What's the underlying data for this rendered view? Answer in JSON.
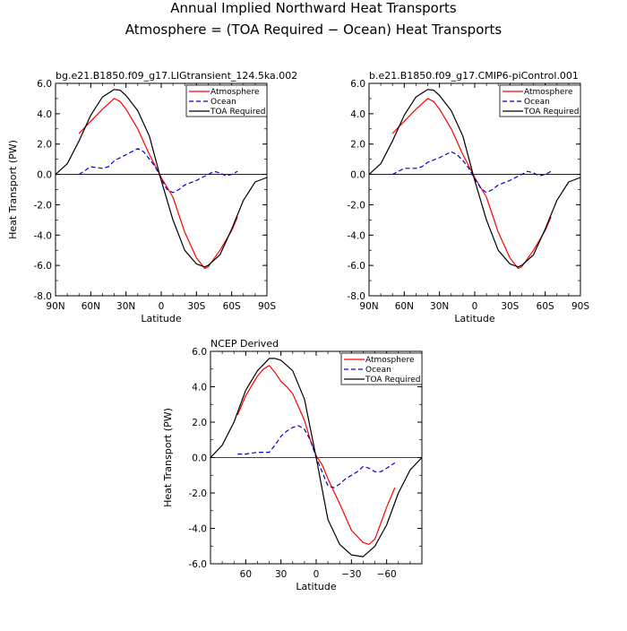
{
  "figure": {
    "title_line1": "Annual Implied Northward Heat Transports",
    "title_line2": "Atmosphere = (TOA Required − Ocean) Heat Transports"
  },
  "chart_data": [
    {
      "type": "line",
      "title": "bg.e21.B1850.f09_g17.LIGtransient_124.5ka.002",
      "xlabel": "Latitude",
      "ylabel": "Heat Transport (PW)",
      "xlim": [
        90,
        -90
      ],
      "ylim": [
        -8,
        6
      ],
      "xticks": [
        90,
        60,
        30,
        0,
        -30,
        -60,
        -90
      ],
      "xticklabels": [
        "90N",
        "60N",
        "30N",
        "0",
        "30S",
        "60S",
        "90S"
      ],
      "yticks": [
        -8,
        -6,
        -4,
        -2,
        0,
        2,
        4,
        6
      ],
      "yticklabels": [
        "-8.0",
        "-6.0",
        "-4.0",
        "-2.0",
        "0.0",
        "2.0",
        "4.0",
        "6.0"
      ],
      "series": [
        {
          "name": "Atmosphere",
          "color": "#ff0000",
          "dash": "solid",
          "x": [
            70,
            60,
            50,
            40,
            35,
            30,
            20,
            10,
            0,
            -10,
            -20,
            -30,
            -37,
            -40,
            -50,
            -60,
            -65
          ],
          "y": [
            2.7,
            3.5,
            4.3,
            5.0,
            4.8,
            4.3,
            3.0,
            1.3,
            -0.2,
            -1.5,
            -3.8,
            -5.5,
            -6.2,
            -6.1,
            -5.0,
            -3.7,
            -2.8
          ]
        },
        {
          "name": "Ocean",
          "color": "#0000cc",
          "dash": "dashed",
          "x": [
            70,
            60,
            50,
            45,
            40,
            30,
            25,
            20,
            15,
            10,
            5,
            0,
            -5,
            -10,
            -15,
            -20,
            -30,
            -40,
            -45,
            -50,
            -55,
            -60,
            -65
          ],
          "y": [
            0.0,
            0.5,
            0.4,
            0.5,
            0.9,
            1.3,
            1.5,
            1.7,
            1.5,
            1.0,
            0.5,
            -0.3,
            -1.0,
            -1.2,
            -1.0,
            -0.7,
            -0.4,
            0.0,
            0.2,
            0.1,
            -0.1,
            0.0,
            0.2
          ]
        },
        {
          "name": "TOA Required",
          "color": "#000000",
          "dash": "solid",
          "x": [
            90,
            80,
            70,
            60,
            50,
            40,
            35,
            30,
            20,
            10,
            0,
            -10,
            -20,
            -30,
            -37,
            -40,
            -50,
            -60,
            -70,
            -80,
            -90
          ],
          "y": [
            0.0,
            0.7,
            2.2,
            3.9,
            5.1,
            5.6,
            5.55,
            5.2,
            4.2,
            2.5,
            -0.4,
            -3.0,
            -5.0,
            -5.9,
            -6.1,
            -6.0,
            -5.3,
            -3.6,
            -1.7,
            -0.5,
            -0.2
          ]
        }
      ],
      "legend": "top-right"
    },
    {
      "type": "line",
      "title": "b.e21.B1850.f09_g17.CMIP6-piControl.001",
      "xlabel": "Latitude",
      "ylabel": "",
      "xlim": [
        90,
        -90
      ],
      "ylim": [
        -8,
        6
      ],
      "xticks": [
        90,
        60,
        30,
        0,
        -30,
        -60,
        -90
      ],
      "xticklabels": [
        "90N",
        "60N",
        "30N",
        "0",
        "30S",
        "60S",
        "90S"
      ],
      "yticks": [
        -8,
        -6,
        -4,
        -2,
        0,
        2,
        4,
        6
      ],
      "yticklabels": [
        "-8.0",
        "-6.0",
        "-4.0",
        "-2.0",
        "0.0",
        "2.0",
        "4.0",
        "6.0"
      ],
      "series": [
        {
          "name": "Atmosphere",
          "color": "#ff0000",
          "dash": "solid",
          "x": [
            70,
            60,
            50,
            40,
            35,
            30,
            20,
            10,
            0,
            -10,
            -20,
            -30,
            -37,
            -40,
            -50,
            -60,
            -65
          ],
          "y": [
            2.7,
            3.5,
            4.3,
            5.0,
            4.8,
            4.3,
            3.0,
            1.3,
            -0.2,
            -1.5,
            -3.8,
            -5.5,
            -6.2,
            -6.1,
            -5.0,
            -3.7,
            -2.8
          ]
        },
        {
          "name": "Ocean",
          "color": "#0000cc",
          "dash": "dashed",
          "x": [
            70,
            60,
            50,
            45,
            40,
            30,
            25,
            20,
            15,
            10,
            5,
            0,
            -5,
            -10,
            -15,
            -20,
            -30,
            -40,
            -45,
            -50,
            -55,
            -60,
            -65
          ],
          "y": [
            0.0,
            0.4,
            0.4,
            0.5,
            0.8,
            1.1,
            1.3,
            1.5,
            1.3,
            0.9,
            0.4,
            -0.3,
            -0.9,
            -1.2,
            -1.0,
            -0.7,
            -0.4,
            0.0,
            0.2,
            0.1,
            -0.1,
            0.0,
            0.2
          ]
        },
        {
          "name": "TOA Required",
          "color": "#000000",
          "dash": "solid",
          "x": [
            90,
            80,
            70,
            60,
            50,
            40,
            35,
            30,
            20,
            10,
            0,
            -10,
            -20,
            -30,
            -37,
            -40,
            -50,
            -60,
            -70,
            -80,
            -90
          ],
          "y": [
            0.0,
            0.7,
            2.2,
            3.9,
            5.1,
            5.6,
            5.55,
            5.2,
            4.2,
            2.5,
            -0.4,
            -3.0,
            -5.0,
            -5.9,
            -6.1,
            -6.0,
            -5.3,
            -3.6,
            -1.7,
            -0.5,
            -0.2
          ]
        }
      ],
      "legend": "top-right"
    },
    {
      "type": "line",
      "title": "NCEP Derived",
      "xlabel": "Latitude",
      "ylabel": "Heat Transport (PW)",
      "xlim": [
        90,
        -90
      ],
      "ylim": [
        -6,
        6
      ],
      "xticks": [
        60,
        30,
        0,
        -30,
        -60
      ],
      "xticklabels": [
        "60",
        "30",
        "0",
        "−30",
        "−60"
      ],
      "yticks": [
        -6,
        -4,
        -2,
        0,
        2,
        4,
        6
      ],
      "yticklabels": [
        "-6.0",
        "-4.0",
        "-2.0",
        "0.0",
        "2.0",
        "4.0",
        "6.0"
      ],
      "series": [
        {
          "name": "Atmosphere",
          "color": "#ff0000",
          "dash": "solid",
          "x": [
            67,
            60,
            50,
            45,
            40,
            35,
            30,
            25,
            20,
            10,
            5,
            0,
            -5,
            -10,
            -20,
            -30,
            -40,
            -45,
            -50,
            -60,
            -67
          ],
          "y": [
            2.4,
            3.5,
            4.6,
            5.0,
            5.2,
            4.8,
            4.3,
            4.0,
            3.6,
            2.1,
            1.0,
            0.1,
            -0.4,
            -1.2,
            -2.6,
            -4.1,
            -4.8,
            -4.9,
            -4.6,
            -2.8,
            -1.7
          ]
        },
        {
          "name": "Ocean",
          "color": "#0000cc",
          "dash": "dashed",
          "x": [
            67,
            60,
            50,
            45,
            40,
            35,
            30,
            25,
            20,
            15,
            10,
            5,
            0,
            -5,
            -10,
            -15,
            -20,
            -25,
            -30,
            -35,
            -40,
            -45,
            -50,
            -55,
            -60,
            -67
          ],
          "y": [
            0.2,
            0.2,
            0.3,
            0.3,
            0.3,
            0.7,
            1.2,
            1.5,
            1.7,
            1.8,
            1.6,
            1.0,
            0.0,
            -0.8,
            -1.6,
            -1.7,
            -1.5,
            -1.2,
            -1.0,
            -0.8,
            -0.5,
            -0.6,
            -0.8,
            -0.8,
            -0.6,
            -0.3
          ]
        },
        {
          "name": "TOA Required",
          "color": "#000000",
          "dash": "solid",
          "x": [
            90,
            80,
            70,
            60,
            50,
            40,
            35,
            30,
            20,
            10,
            0,
            -10,
            -20,
            -30,
            -40,
            -50,
            -60,
            -70,
            -80,
            -90
          ],
          "y": [
            0.0,
            0.7,
            2.0,
            3.8,
            4.9,
            5.6,
            5.6,
            5.5,
            4.9,
            3.3,
            0.0,
            -3.5,
            -4.9,
            -5.5,
            -5.6,
            -5.0,
            -3.8,
            -2.0,
            -0.7,
            0.0
          ]
        }
      ],
      "legend": "top-right"
    }
  ]
}
